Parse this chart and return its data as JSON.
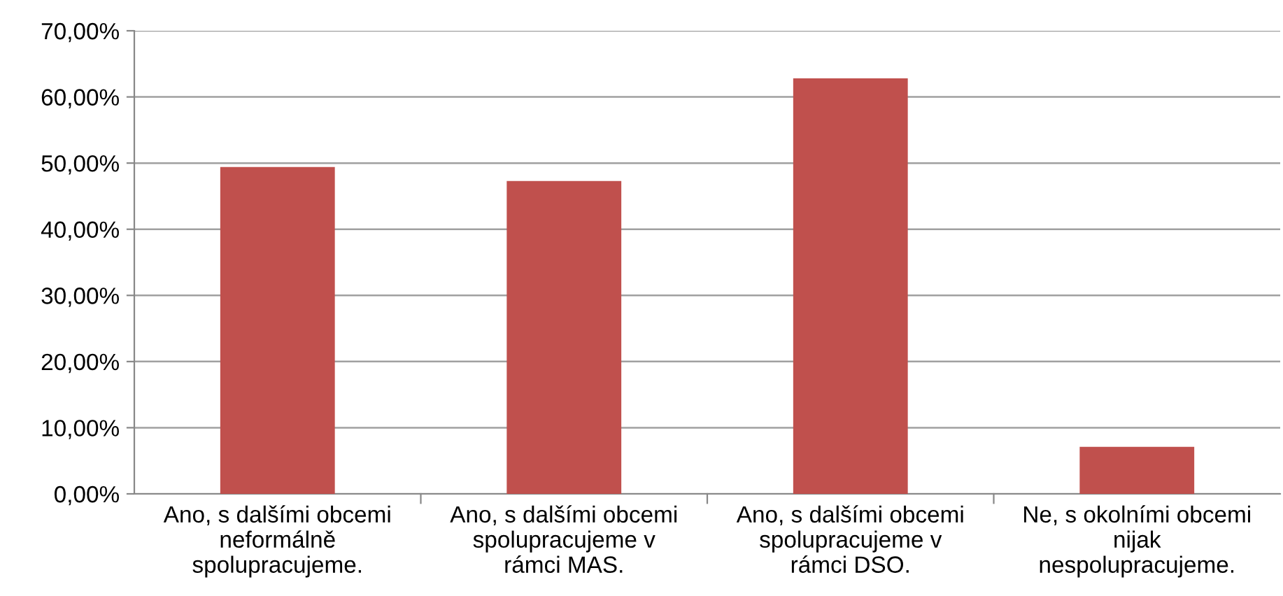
{
  "chart_data": {
    "type": "bar",
    "categories": [
      "Ano, s dalšími obcemi\nneformálně\nspolupracujeme.",
      "Ano, s dalšími obcemi\nspolupracujeme v\nrámci MAS.",
      "Ano, s dalšími obcemi\nspolupracujeme v\nrámci DSO.",
      "Ne, s okolními obcemi\nnijak\nnespolupracujeme."
    ],
    "values": [
      49.4,
      47.3,
      62.8,
      7.1
    ],
    "color": "#c0504d",
    "ylim": [
      0,
      70
    ],
    "yticks": [
      {
        "value": 0,
        "label": "0,00%"
      },
      {
        "value": 10,
        "label": "10,00%"
      },
      {
        "value": 20,
        "label": "20,00%"
      },
      {
        "value": 30,
        "label": "30,00%"
      },
      {
        "value": 40,
        "label": "40,00%"
      },
      {
        "value": 50,
        "label": "50,00%"
      },
      {
        "value": 60,
        "label": "60,00%"
      },
      {
        "value": 70,
        "label": "70,00%"
      }
    ],
    "grid": "y",
    "legend": false
  }
}
